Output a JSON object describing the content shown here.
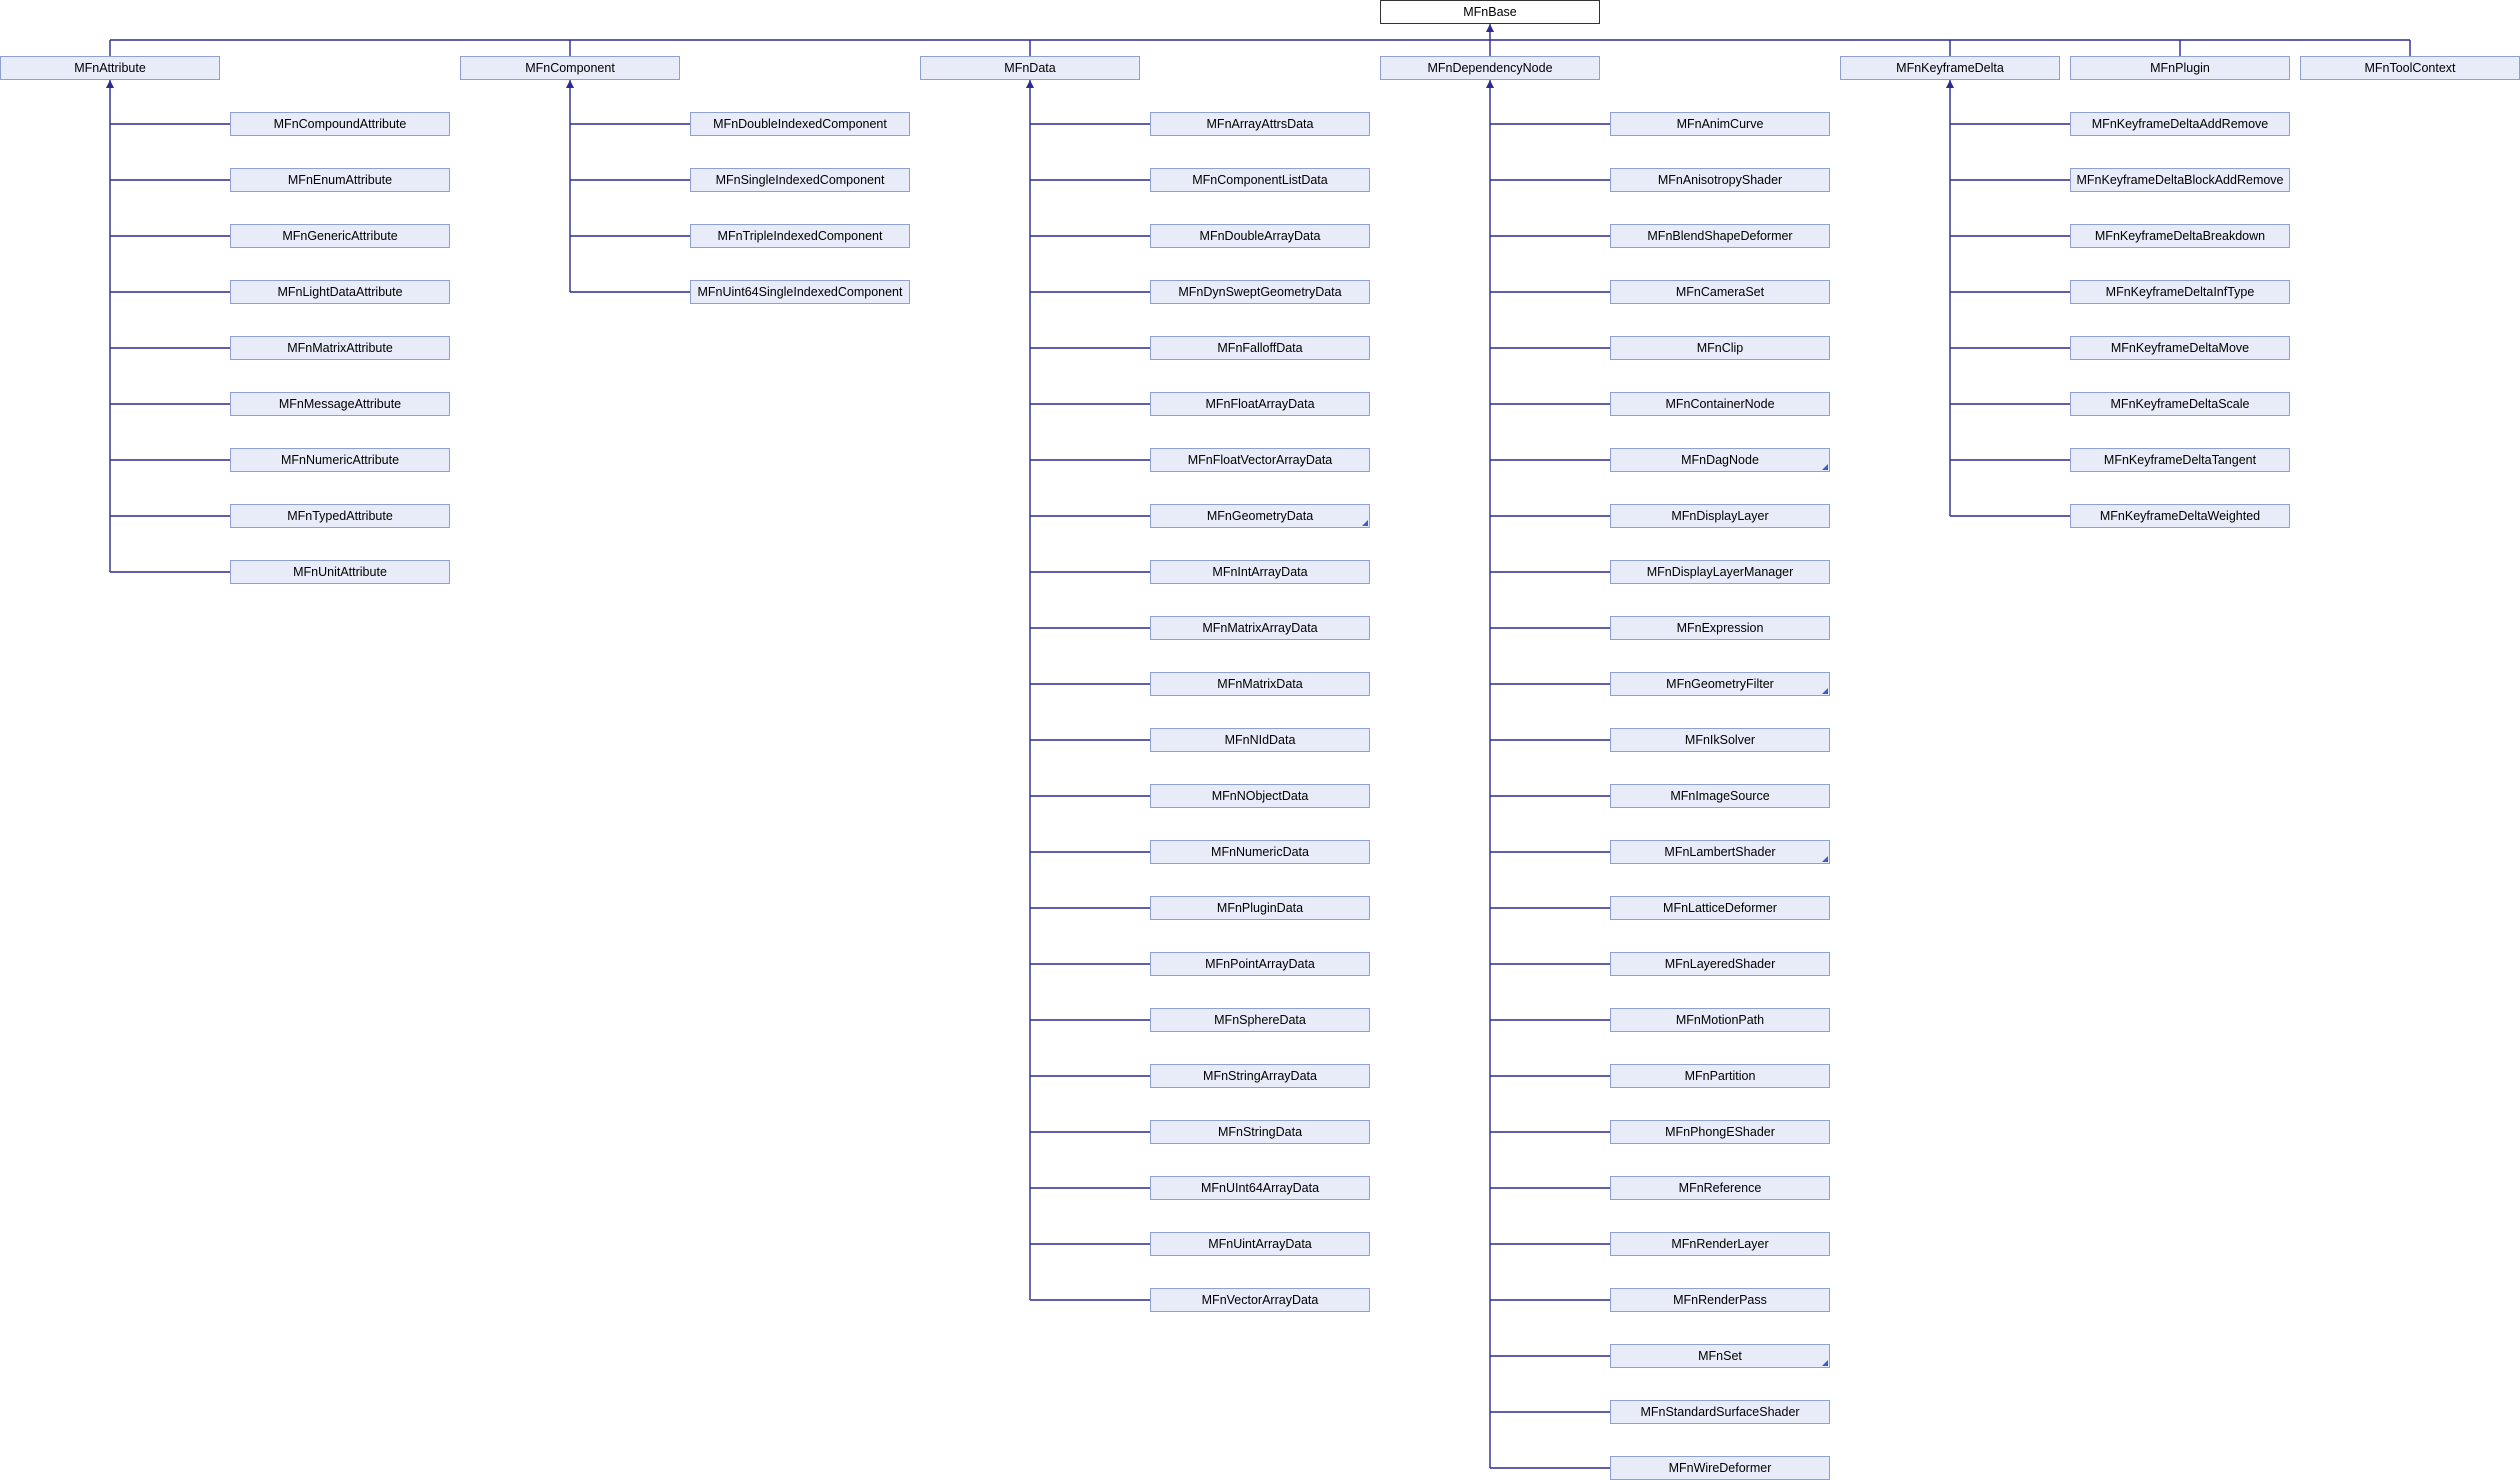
{
  "colors": {
    "edge": "#2a2a90",
    "node_fill": "#e8ecf8",
    "node_border": "#8da0cf"
  },
  "root": "MFnBase",
  "groups": [
    {
      "name": "MFnAttribute",
      "children": [
        {
          "name": "MFnCompoundAttribute"
        },
        {
          "name": "MFnEnumAttribute"
        },
        {
          "name": "MFnGenericAttribute"
        },
        {
          "name": "MFnLightDataAttribute"
        },
        {
          "name": "MFnMatrixAttribute"
        },
        {
          "name": "MFnMessageAttribute"
        },
        {
          "name": "MFnNumericAttribute"
        },
        {
          "name": "MFnTypedAttribute"
        },
        {
          "name": "MFnUnitAttribute"
        }
      ]
    },
    {
      "name": "MFnComponent",
      "children": [
        {
          "name": "MFnDoubleIndexedComponent"
        },
        {
          "name": "MFnSingleIndexedComponent"
        },
        {
          "name": "MFnTripleIndexedComponent"
        },
        {
          "name": "MFnUint64SingleIndexedComponent"
        }
      ]
    },
    {
      "name": "MFnData",
      "children": [
        {
          "name": "MFnArrayAttrsData"
        },
        {
          "name": "MFnComponentListData"
        },
        {
          "name": "MFnDoubleArrayData"
        },
        {
          "name": "MFnDynSweptGeometryData"
        },
        {
          "name": "MFnFalloffData"
        },
        {
          "name": "MFnFloatArrayData"
        },
        {
          "name": "MFnFloatVectorArrayData"
        },
        {
          "name": "MFnGeometryData",
          "more": true
        },
        {
          "name": "MFnIntArrayData"
        },
        {
          "name": "MFnMatrixArrayData"
        },
        {
          "name": "MFnMatrixData"
        },
        {
          "name": "MFnNIdData"
        },
        {
          "name": "MFnNObjectData"
        },
        {
          "name": "MFnNumericData"
        },
        {
          "name": "MFnPluginData"
        },
        {
          "name": "MFnPointArrayData"
        },
        {
          "name": "MFnSphereData"
        },
        {
          "name": "MFnStringArrayData"
        },
        {
          "name": "MFnStringData"
        },
        {
          "name": "MFnUInt64ArrayData"
        },
        {
          "name": "MFnUintArrayData"
        },
        {
          "name": "MFnVectorArrayData"
        }
      ]
    },
    {
      "name": "MFnDependencyNode",
      "children": [
        {
          "name": "MFnAnimCurve"
        },
        {
          "name": "MFnAnisotropyShader"
        },
        {
          "name": "MFnBlendShapeDeformer"
        },
        {
          "name": "MFnCameraSet"
        },
        {
          "name": "MFnClip"
        },
        {
          "name": "MFnContainerNode"
        },
        {
          "name": "MFnDagNode",
          "more": true
        },
        {
          "name": "MFnDisplayLayer"
        },
        {
          "name": "MFnDisplayLayerManager"
        },
        {
          "name": "MFnExpression"
        },
        {
          "name": "MFnGeometryFilter",
          "more": true
        },
        {
          "name": "MFnIkSolver"
        },
        {
          "name": "MFnImageSource"
        },
        {
          "name": "MFnLambertShader",
          "more": true
        },
        {
          "name": "MFnLatticeDeformer"
        },
        {
          "name": "MFnLayeredShader"
        },
        {
          "name": "MFnMotionPath"
        },
        {
          "name": "MFnPartition"
        },
        {
          "name": "MFnPhongEShader"
        },
        {
          "name": "MFnReference"
        },
        {
          "name": "MFnRenderLayer"
        },
        {
          "name": "MFnRenderPass"
        },
        {
          "name": "MFnSet",
          "more": true
        },
        {
          "name": "MFnStandardSurfaceShader"
        },
        {
          "name": "MFnWireDeformer"
        }
      ]
    },
    {
      "name": "MFnKeyframeDelta",
      "children": [
        {
          "name": "MFnKeyframeDeltaAddRemove"
        },
        {
          "name": "MFnKeyframeDeltaBlockAddRemove"
        },
        {
          "name": "MFnKeyframeDeltaBreakdown"
        },
        {
          "name": "MFnKeyframeDeltaInfType"
        },
        {
          "name": "MFnKeyframeDeltaMove"
        },
        {
          "name": "MFnKeyframeDeltaScale"
        },
        {
          "name": "MFnKeyframeDeltaTangent"
        },
        {
          "name": "MFnKeyframeDeltaWeighted"
        }
      ]
    },
    {
      "name": "MFnPlugin",
      "children": []
    },
    {
      "name": "MFnToolContext",
      "children": []
    }
  ]
}
